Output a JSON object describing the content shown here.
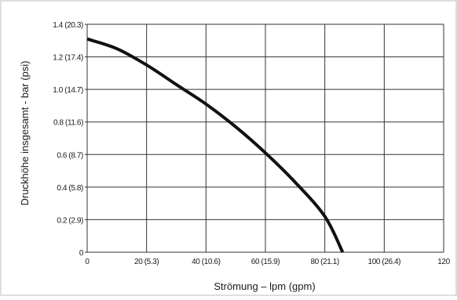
{
  "chart_data": {
    "type": "line",
    "title": "",
    "xlabel": "Strömung – lpm (gpm)",
    "ylabel": "Druckhöhe insgesamt - bar (psi)",
    "xlim": [
      0,
      120
    ],
    "ylim": [
      0,
      1.4
    ],
    "grid": true,
    "x_ticks": [
      {
        "value": 0,
        "label": "0"
      },
      {
        "value": 20,
        "label": "20 (5.3)"
      },
      {
        "value": 40,
        "label": "40 (10.6)"
      },
      {
        "value": 60,
        "label": "60 (15.9)"
      },
      {
        "value": 80,
        "label": "80 (21.1)"
      },
      {
        "value": 100,
        "label": "100 (26.4)"
      },
      {
        "value": 120,
        "label": "120"
      }
    ],
    "y_ticks": [
      {
        "value": 0,
        "label": "0"
      },
      {
        "value": 0.2,
        "label": "0.2 (2.9)"
      },
      {
        "value": 0.4,
        "label": "0.4 (5.8)"
      },
      {
        "value": 0.6,
        "label": "0.6 (8.7)"
      },
      {
        "value": 0.8,
        "label": "0.8 (11.6)"
      },
      {
        "value": 1.0,
        "label": "1.0 (14.7)"
      },
      {
        "value": 1.2,
        "label": "1.2 (17.4)"
      },
      {
        "value": 1.4,
        "label": "1.4 (20.3)"
      }
    ],
    "series": [
      {
        "x": [
          0,
          10,
          20,
          30,
          40,
          50,
          60,
          70,
          80,
          86
        ],
        "y": [
          1.31,
          1.25,
          1.15,
          1.03,
          0.91,
          0.77,
          0.61,
          0.43,
          0.22,
          0
        ]
      }
    ],
    "colors": {
      "line": "#111111",
      "grid": "#333333",
      "frame": "#bdbdbd"
    }
  }
}
